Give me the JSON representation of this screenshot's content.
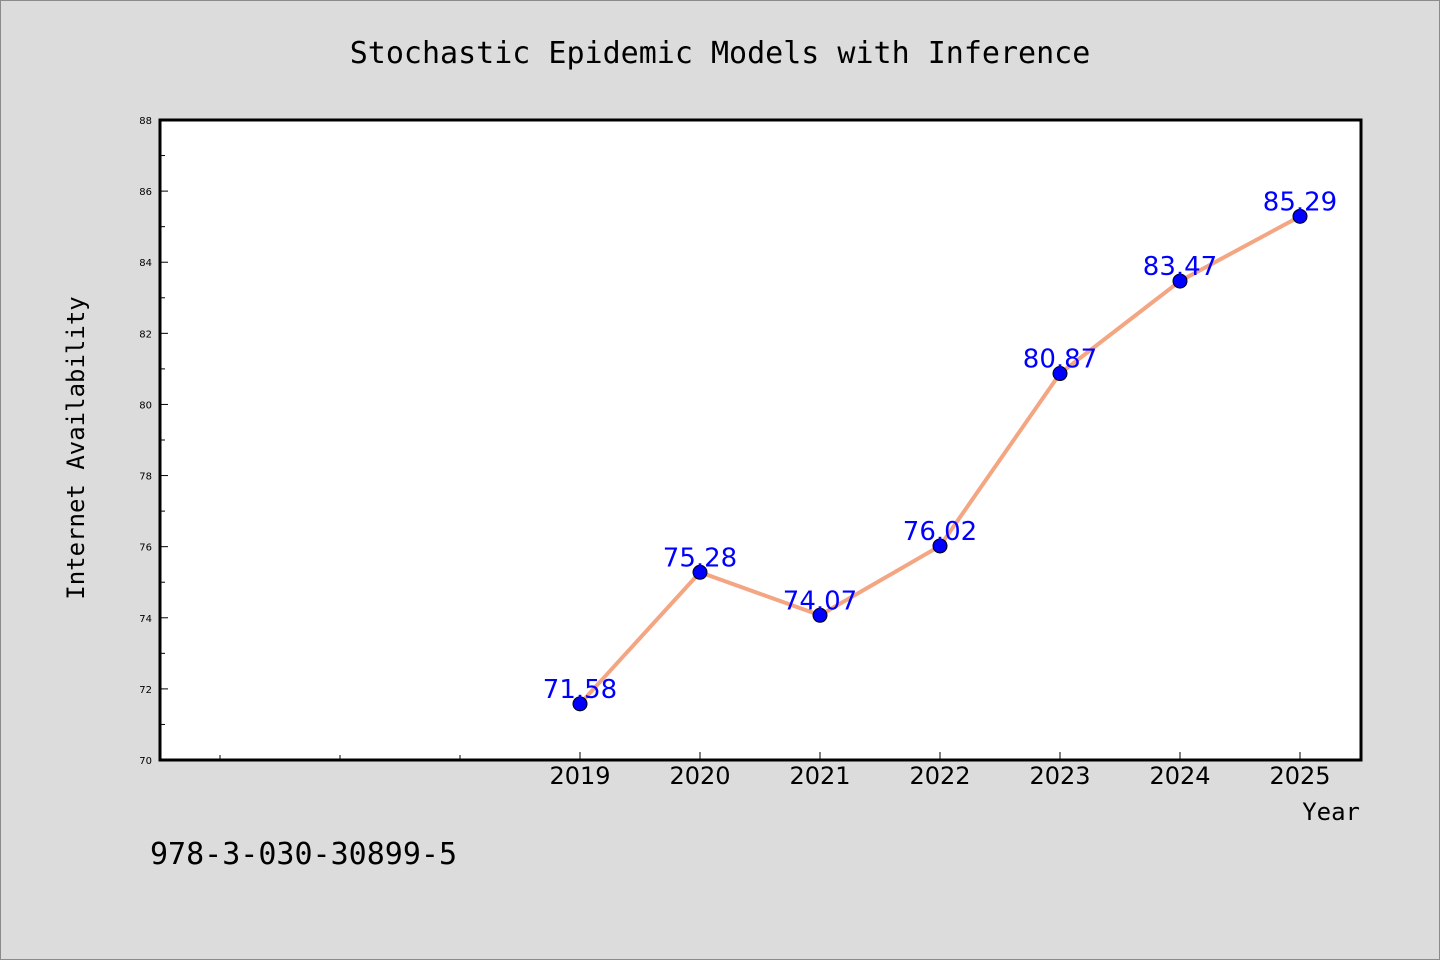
{
  "chart_data": {
    "type": "line",
    "title": "Stochastic Epidemic Models with Inference",
    "xlabel": "Year",
    "ylabel": "Internet Availability",
    "x": [
      "2019",
      "2020",
      "2021",
      "2022",
      "2023",
      "2024",
      "2025"
    ],
    "values": [
      71.58,
      75.28,
      74.07,
      76.02,
      80.87,
      83.47,
      85.29
    ],
    "data_labels": [
      "71.58",
      "75.28",
      "74.07",
      "76.02",
      "80.87",
      "83.47",
      "85.29"
    ],
    "ylim": [
      70,
      88
    ],
    "yticks": [
      "70",
      "72",
      "74",
      "76",
      "78",
      "80",
      "82",
      "84",
      "86",
      "88"
    ],
    "grid": false,
    "line_color": "#f4a582",
    "marker_color": "#0000ff",
    "label_color": "#0000ff"
  },
  "footer": {
    "isbn": "978-3-030-30899-5"
  }
}
